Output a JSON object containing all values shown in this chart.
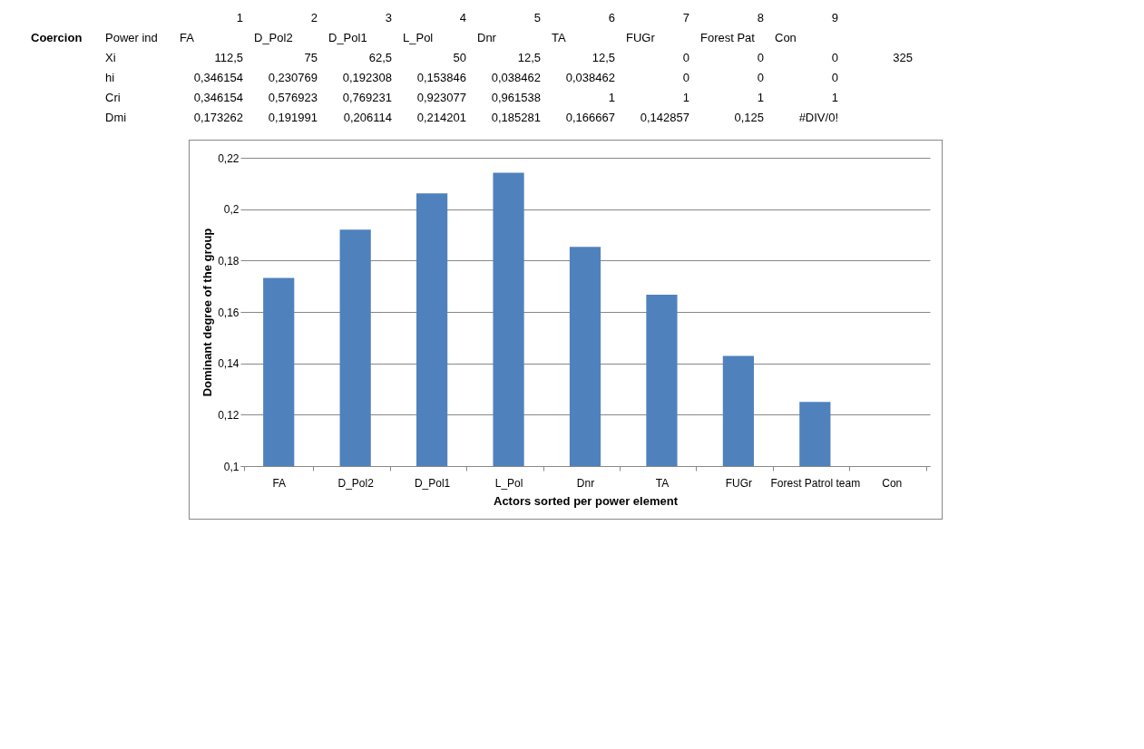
{
  "chart_data": {
    "type": "bar",
    "categories": [
      "FA",
      "D_Pol2",
      "D_Pol1",
      "L_Pol",
      "Dnr",
      "TA",
      "FUGr",
      "Forest Patrol team",
      "Con"
    ],
    "values": [
      0.173262,
      0.191991,
      0.206114,
      0.214201,
      0.185281,
      0.166667,
      0.142857,
      0.125,
      null
    ],
    "color": "#4f81bd",
    "xlabel": "Actors sorted per power element",
    "ylabel": "Dominant degree of the group",
    "ylim": [
      0.1,
      0.22
    ],
    "yticks": [
      {
        "value": 0.1,
        "label": "0,1"
      },
      {
        "value": 0.12,
        "label": "0,12"
      },
      {
        "value": 0.14,
        "label": "0,14"
      },
      {
        "value": 0.16,
        "label": "0,16"
      },
      {
        "value": 0.18,
        "label": "0,18"
      },
      {
        "value": 0.2,
        "label": "0,2"
      },
      {
        "value": 0.22,
        "label": "0,22"
      }
    ],
    "grid": "y",
    "annotations": [
      "\t\t1\t2\t3\t4\t5\t6\t7\t8\t9",
      "Coercion\tPower ind\tFA\tD_Pol2\tD_Pol1\tL_Pol\tDnr\tTA\tFUGr\tForest Pat\tCon",
      "\tXi\t112,5\t75\t62,5\t50\t12,5\t12,5\t0\t0\t0\t325",
      "\thi\t0,346154\t0,230769\t0,192308\t0,153846\t0,038462\t0,038462\t0\t0\t0",
      "\tCri\t0,346154\t0,576923\t0,769231\t0,923077\t0,961538\t1\t1\t1\t1",
      "\tDmi\t0,173262\t0,191991\t0,206114\t0,214201\t0,185281\t0,166667\t0,142857\t0,125\t#DIV/0!"
    ]
  }
}
